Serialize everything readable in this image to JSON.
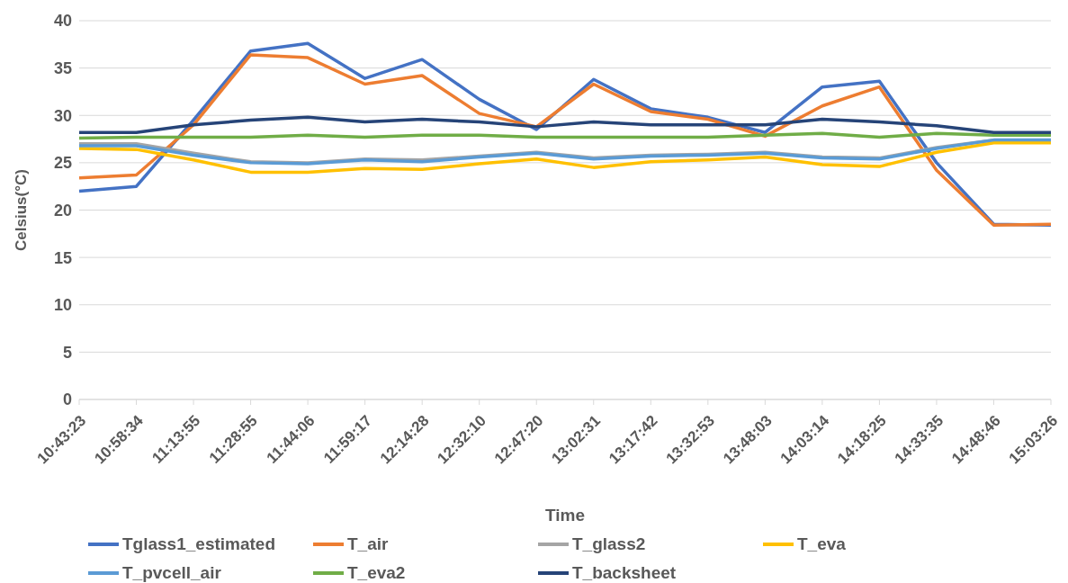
{
  "chart_data": {
    "type": "line",
    "xlabel": "Time",
    "ylabel": "Celsius(°C)",
    "categories": [
      "10:43:23",
      "10:58:34",
      "11:13:55",
      "11:28:55",
      "11:44:06",
      "11:59:17",
      "12:14:28",
      "12:32:10",
      "12:47:20",
      "13:02:31",
      "13:17:42",
      "13:32:53",
      "13:48:03",
      "14:03:14",
      "14:18:25",
      "14:33:35",
      "14:48:46",
      "15:03:26"
    ],
    "series": [
      {
        "name": "Tglass1_estimated",
        "color": "#4472c4",
        "values": [
          22.0,
          22.5,
          29.5,
          36.8,
          37.6,
          33.9,
          35.9,
          31.7,
          28.5,
          33.8,
          30.7,
          29.8,
          28.2,
          33.0,
          33.6,
          25.0,
          18.5,
          18.4
        ]
      },
      {
        "name": "T_air",
        "color": "#ed7d31",
        "values": [
          23.4,
          23.7,
          29.0,
          36.4,
          36.1,
          33.3,
          34.2,
          30.2,
          28.8,
          33.3,
          30.4,
          29.6,
          27.8,
          31.0,
          33.0,
          24.2,
          18.4,
          18.5
        ]
      },
      {
        "name": "T_glass2",
        "color": "#a5a5a5",
        "values": [
          27.0,
          27.0,
          26.0,
          25.1,
          25.0,
          25.4,
          25.3,
          25.7,
          26.1,
          25.5,
          25.8,
          25.9,
          26.1,
          25.6,
          25.5,
          26.6,
          27.4,
          null
        ]
      },
      {
        "name": "T_eva",
        "color": "#ffc000",
        "values": [
          26.5,
          26.4,
          25.3,
          24.0,
          24.0,
          24.4,
          24.3,
          24.9,
          25.4,
          24.5,
          25.1,
          25.3,
          25.6,
          24.8,
          24.6,
          26.1,
          27.1,
          27.1
        ]
      },
      {
        "name": "T_pvcell_air",
        "color": "#5b9bd5",
        "values": [
          26.8,
          26.8,
          25.8,
          25.0,
          24.9,
          25.3,
          25.1,
          25.6,
          26.0,
          25.4,
          25.7,
          25.8,
          26.0,
          25.5,
          25.4,
          26.5,
          27.4,
          27.4
        ]
      },
      {
        "name": "T_eva2",
        "color": "#70ad47",
        "values": [
          27.6,
          27.7,
          27.7,
          27.7,
          27.9,
          27.7,
          27.9,
          27.9,
          27.7,
          27.7,
          27.7,
          27.7,
          27.9,
          28.1,
          27.7,
          28.1,
          27.9,
          27.9
        ]
      },
      {
        "name": "T_backsheet",
        "color": "#264478",
        "values": [
          28.2,
          28.2,
          29.0,
          29.5,
          29.8,
          29.3,
          29.6,
          29.3,
          28.8,
          29.3,
          29.0,
          29.0,
          29.0,
          29.6,
          29.3,
          28.9,
          28.2,
          28.2
        ]
      }
    ],
    "ylim": [
      0,
      40
    ],
    "yticks": [
      0,
      5,
      10,
      15,
      20,
      25,
      30,
      35,
      40
    ],
    "grid": "y",
    "legend": "bottom",
    "marker": "none",
    "line_style": "solid"
  }
}
